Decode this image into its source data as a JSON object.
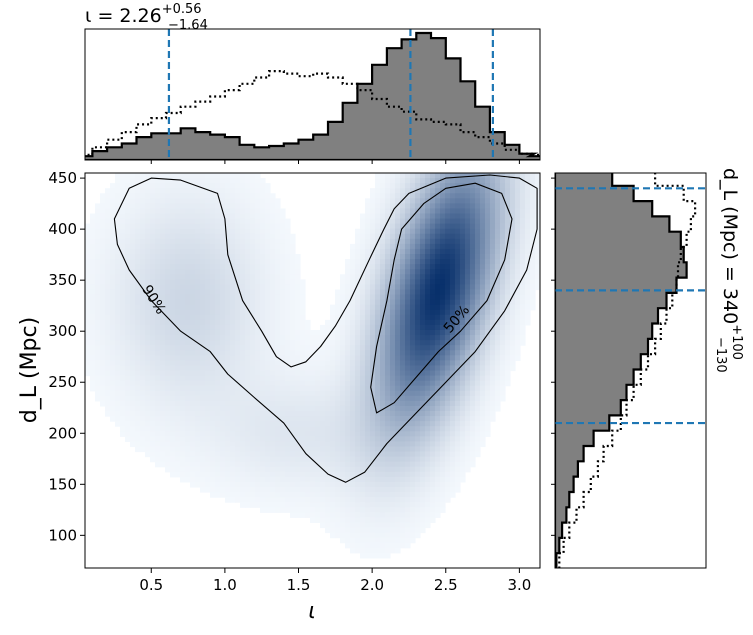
{
  "chart_data": [
    {
      "panel": "joint",
      "type": "heatmap",
      "xlabel": "ι",
      "ylabel": "d_L (Mpc)",
      "xlim": [
        0.05,
        3.14
      ],
      "ylim": [
        68,
        455
      ],
      "xticks": [
        "0.5",
        "1.0",
        "1.5",
        "2.0",
        "2.5",
        "3.0"
      ],
      "yticks": [
        "100",
        "150",
        "200",
        "250",
        "300",
        "350",
        "400",
        "450"
      ],
      "density_peaks": [
        {
          "x": 2.45,
          "y": 340,
          "weight": 1.0
        },
        {
          "x": 0.75,
          "y": 330,
          "weight": 0.18
        },
        {
          "x": 1.5,
          "y": 200,
          "weight": 0.1
        }
      ],
      "contour_labels": [
        "90%",
        "50%"
      ],
      "contour_50": [
        [
          2.2,
          400
        ],
        [
          2.35,
          425
        ],
        [
          2.5,
          440
        ],
        [
          2.7,
          445
        ],
        [
          2.88,
          435
        ],
        [
          2.95,
          410
        ],
        [
          2.9,
          370
        ],
        [
          2.78,
          330
        ],
        [
          2.6,
          300
        ],
        [
          2.45,
          280
        ],
        [
          2.3,
          255
        ],
        [
          2.15,
          230
        ],
        [
          2.03,
          220
        ],
        [
          1.99,
          245
        ],
        [
          2.03,
          285
        ],
        [
          2.1,
          330
        ],
        [
          2.15,
          370
        ],
        [
          2.2,
          400
        ]
      ],
      "contour_90": [
        [
          0.25,
          410
        ],
        [
          0.35,
          440
        ],
        [
          0.5,
          450
        ],
        [
          0.7,
          448
        ],
        [
          0.95,
          435
        ],
        [
          1.0,
          410
        ],
        [
          1.02,
          375
        ],
        [
          1.12,
          330
        ],
        [
          1.25,
          300
        ],
        [
          1.35,
          275
        ],
        [
          1.45,
          265
        ],
        [
          1.55,
          270
        ],
        [
          1.65,
          285
        ],
        [
          1.75,
          305
        ],
        [
          1.85,
          330
        ],
        [
          1.98,
          370
        ],
        [
          2.08,
          400
        ],
        [
          2.15,
          420
        ],
        [
          2.25,
          435
        ],
        [
          2.5,
          450
        ],
        [
          2.8,
          453
        ],
        [
          3.0,
          450
        ],
        [
          3.12,
          440
        ],
        [
          3.12,
          400
        ],
        [
          3.05,
          360
        ],
        [
          2.9,
          320
        ],
        [
          2.7,
          280
        ],
        [
          2.5,
          250
        ],
        [
          2.3,
          220
        ],
        [
          2.1,
          190
        ],
        [
          1.95,
          162
        ],
        [
          1.82,
          152
        ],
        [
          1.7,
          160
        ],
        [
          1.55,
          180
        ],
        [
          1.4,
          210
        ],
        [
          1.2,
          235
        ],
        [
          1.02,
          258
        ],
        [
          0.9,
          280
        ],
        [
          0.7,
          300
        ],
        [
          0.5,
          330
        ],
        [
          0.35,
          360
        ],
        [
          0.27,
          385
        ],
        [
          0.25,
          410
        ]
      ]
    },
    {
      "panel": "top-marginal",
      "type": "area",
      "title": "ι = 2.26",
      "title_sup": "+0.56",
      "title_sub": "−1.64",
      "x": [
        0.05,
        0.15,
        0.25,
        0.35,
        0.45,
        0.55,
        0.65,
        0.75,
        0.85,
        0.95,
        1.05,
        1.15,
        1.25,
        1.35,
        1.45,
        1.55,
        1.65,
        1.75,
        1.85,
        1.95,
        2.05,
        2.15,
        2.25,
        2.35,
        2.45,
        2.55,
        2.65,
        2.75,
        2.85,
        2.95,
        3.05,
        3.12
      ],
      "series": [
        {
          "values": [
            0.03,
            0.07,
            0.1,
            0.13,
            0.18,
            0.21,
            0.21,
            0.25,
            0.22,
            0.2,
            0.18,
            0.12,
            0.1,
            0.11,
            0.13,
            0.16,
            0.2,
            0.3,
            0.45,
            0.6,
            0.75,
            0.88,
            0.95,
            1.0,
            0.96,
            0.8,
            0.62,
            0.42,
            0.22,
            0.12,
            0.05,
            0.03
          ]
        },
        {
          "values": [
            0.04,
            0.1,
            0.16,
            0.22,
            0.28,
            0.33,
            0.37,
            0.42,
            0.46,
            0.5,
            0.55,
            0.6,
            0.65,
            0.7,
            0.68,
            0.66,
            0.68,
            0.65,
            0.6,
            0.55,
            0.48,
            0.42,
            0.38,
            0.32,
            0.3,
            0.28,
            0.22,
            0.18,
            0.13,
            0.08,
            0.05,
            0.04
          ]
        }
      ],
      "markers_x": [
        0.62,
        2.26,
        2.82
      ]
    },
    {
      "panel": "right-marginal",
      "type": "area",
      "title": "d_L (Mpc) = 340",
      "title_sup": "+100",
      "title_sub": "−130",
      "y": [
        75,
        90,
        105,
        120,
        135,
        150,
        165,
        180,
        195,
        210,
        225,
        240,
        255,
        270,
        285,
        300,
        315,
        330,
        345,
        360,
        375,
        390,
        405,
        420,
        435,
        450
      ],
      "series": [
        {
          "values": [
            0.01,
            0.03,
            0.05,
            0.08,
            0.1,
            0.13,
            0.16,
            0.2,
            0.27,
            0.38,
            0.46,
            0.5,
            0.55,
            0.6,
            0.65,
            0.68,
            0.72,
            0.78,
            0.85,
            0.92,
            0.9,
            0.88,
            0.8,
            0.68,
            0.55,
            0.4
          ]
        },
        {
          "values": [
            0.03,
            0.06,
            0.1,
            0.15,
            0.2,
            0.25,
            0.3,
            0.34,
            0.4,
            0.46,
            0.5,
            0.55,
            0.6,
            0.65,
            0.7,
            0.74,
            0.78,
            0.82,
            0.85,
            0.86,
            0.88,
            0.92,
            0.95,
            0.98,
            0.9,
            0.7
          ]
        }
      ],
      "markers_y": [
        210,
        340,
        440
      ]
    }
  ]
}
